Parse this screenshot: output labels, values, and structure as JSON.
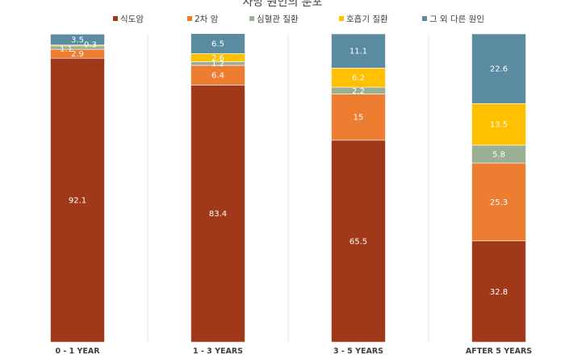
{
  "chart_data": {
    "type": "bar",
    "stacked": true,
    "title": "사망 원인의 분포",
    "categories": [
      "0 - 1 YEAR",
      "1 - 3 YEARS",
      "3 - 5 YEARS",
      "AFTER 5 YEARS"
    ],
    "series": [
      {
        "name": "식도암",
        "color": "#A0381A",
        "values": [
          92.1,
          83.4,
          65.5,
          32.8
        ]
      },
      {
        "name": "2차 암",
        "color": "#ED7D31",
        "values": [
          2.9,
          6.4,
          15,
          25.3
        ]
      },
      {
        "name": "심혈관 질환",
        "color": "#9AAF94",
        "values": [
          1.1,
          1.2,
          2.2,
          5.8
        ]
      },
      {
        "name": "호흡기 질환",
        "color": "#FFC000",
        "values": [
          0.3,
          2.6,
          6.2,
          13.5
        ]
      },
      {
        "name": "그 외 다른 원인",
        "color": "#5B8BA0",
        "values": [
          3.5,
          6.5,
          11.1,
          22.6
        ]
      }
    ],
    "data_labels": [
      [
        "92.1",
        "83.4",
        "65.5",
        "32.8"
      ],
      [
        "2.9",
        "6.4",
        "15",
        "25.3"
      ],
      [
        "1.1",
        "1.2",
        "2.2",
        "5.8"
      ],
      [
        "0.3",
        "2.6",
        "6.2",
        "13.5"
      ],
      [
        "3.5",
        "6.5",
        "11.1",
        "22.6"
      ]
    ],
    "ylim": [
      0,
      100
    ],
    "legend_position": "top",
    "grid": false
  }
}
